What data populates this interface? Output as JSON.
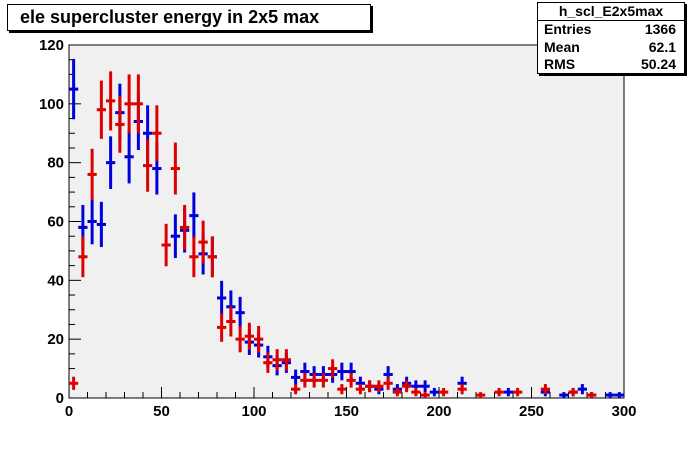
{
  "title": "ele supercluster energy in 2x5 max",
  "stats": {
    "name": "h_scl_E2x5max",
    "rows": [
      {
        "label": "Entries",
        "value": "1366"
      },
      {
        "label": "Mean",
        "value": "62.1"
      },
      {
        "label": "RMS",
        "value": "50.24"
      }
    ]
  },
  "colors": {
    "frame_bg": "#f0f0f0",
    "series_blue": "#0000dd",
    "series_red": "#dd0000"
  },
  "chart_data": {
    "type": "scatter",
    "title": "ele supercluster energy in 2x5 max",
    "xlim": [
      0,
      300
    ],
    "ylim": [
      0,
      120
    ],
    "x_ticks": [
      0,
      50,
      100,
      150,
      200,
      250,
      300
    ],
    "y_ticks": [
      0,
      20,
      40,
      60,
      80,
      100,
      120
    ],
    "bin_width": 5,
    "series": [
      {
        "color": "#0000dd",
        "x": [
          2.5,
          7.5,
          12.5,
          17.5,
          22.5,
          27.5,
          32.5,
          37.5,
          42.5,
          47.5,
          52.5,
          57.5,
          62.5,
          67.5,
          72.5,
          77.5,
          82.5,
          87.5,
          92.5,
          97.5,
          102.5,
          107.5,
          112.5,
          117.5,
          122.5,
          127.5,
          132.5,
          137.5,
          142.5,
          147.5,
          152.5,
          157.5,
          162.5,
          167.5,
          172.5,
          177.5,
          182.5,
          187.5,
          192.5,
          197.5,
          202.5,
          207.5,
          212.5,
          217.5,
          222.5,
          227.5,
          232.5,
          237.5,
          242.5,
          247.5,
          252.5,
          257.5,
          262.5,
          267.5,
          272.5,
          277.5,
          282.5,
          287.5,
          292.5,
          297.5
        ],
        "y": [
          105,
          58,
          60,
          59,
          80,
          97,
          82,
          94,
          90,
          78,
          0,
          55,
          57,
          62,
          49,
          48,
          34,
          31,
          29,
          19,
          18,
          14,
          11,
          12,
          7,
          9,
          8,
          8,
          8,
          9,
          9,
          5,
          4,
          3,
          8,
          3,
          5,
          4,
          4,
          2,
          0,
          0,
          5,
          0,
          0,
          0,
          0,
          2,
          0,
          0,
          0,
          2,
          0,
          1,
          2,
          3,
          1,
          0,
          1,
          1
        ]
      },
      {
        "color": "#dd0000",
        "x": [
          2.5,
          7.5,
          12.5,
          17.5,
          22.5,
          27.5,
          32.5,
          37.5,
          42.5,
          47.5,
          52.5,
          57.5,
          62.5,
          67.5,
          72.5,
          77.5,
          82.5,
          87.5,
          92.5,
          97.5,
          102.5,
          107.5,
          112.5,
          117.5,
          122.5,
          127.5,
          132.5,
          137.5,
          142.5,
          147.5,
          152.5,
          157.5,
          162.5,
          167.5,
          172.5,
          177.5,
          182.5,
          187.5,
          192.5,
          197.5,
          202.5,
          207.5,
          212.5,
          217.5,
          222.5,
          227.5,
          232.5,
          237.5,
          242.5,
          247.5,
          252.5,
          257.5,
          262.5,
          267.5,
          272.5,
          277.5,
          282.5,
          287.5,
          292.5,
          297.5
        ],
        "y": [
          5,
          48,
          76,
          98,
          101,
          93,
          100,
          100,
          79,
          90,
          52,
          78,
          58,
          48,
          53,
          48,
          24,
          26,
          20,
          21,
          20,
          12,
          13,
          13,
          3,
          6,
          6,
          6,
          10,
          3,
          6,
          3,
          4,
          4,
          5,
          2,
          4,
          2,
          1,
          0,
          2,
          0,
          3,
          0,
          1,
          0,
          2,
          0,
          2,
          0,
          0,
          3,
          0,
          0,
          2,
          0,
          1,
          0,
          0,
          0
        ]
      }
    ]
  }
}
